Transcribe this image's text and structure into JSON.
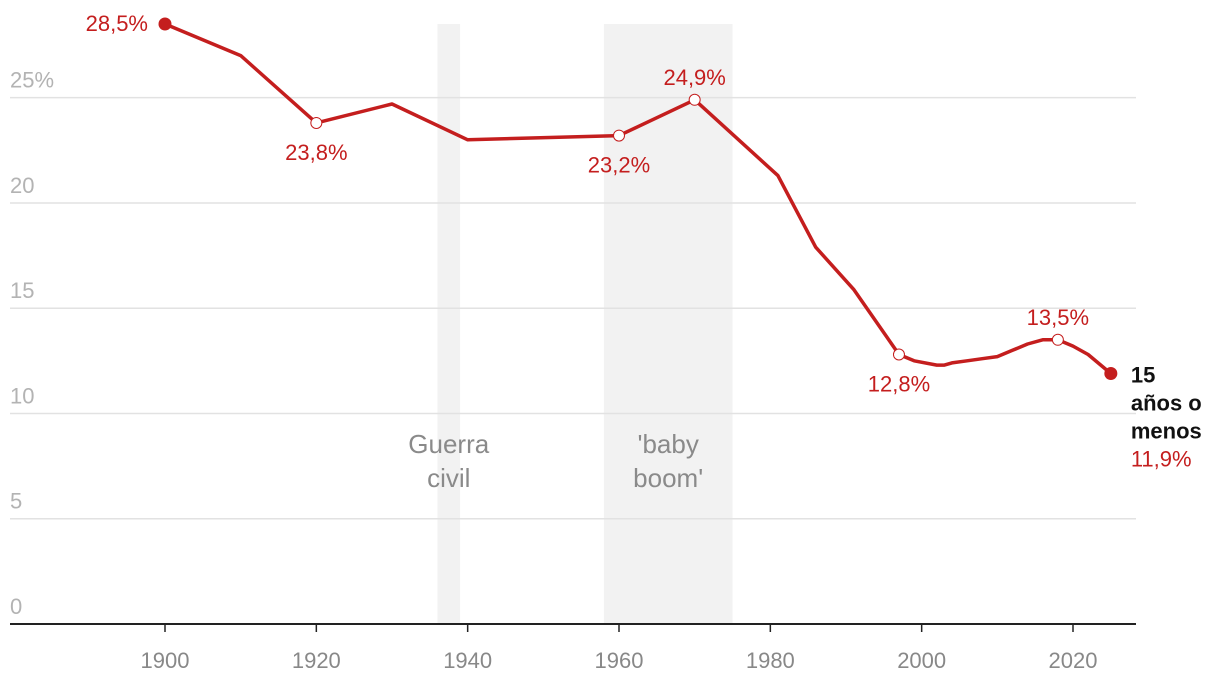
{
  "chart_data": {
    "type": "line",
    "title": "",
    "xlabel": "",
    "ylabel": "",
    "xlim": [
      1880,
      2027
    ],
    "ylim": [
      0,
      28.5
    ],
    "colors": {
      "line": "#c41e1e",
      "grid": "#e2e2e2",
      "band": "#f2f2f2",
      "axis": "#222222"
    },
    "y_ticks": [
      {
        "value": 0,
        "label": "0"
      },
      {
        "value": 5,
        "label": "5"
      },
      {
        "value": 10,
        "label": "10"
      },
      {
        "value": 15,
        "label": "15"
      },
      {
        "value": 20,
        "label": "20"
      },
      {
        "value": 25,
        "label": "25%"
      }
    ],
    "x_ticks": [
      {
        "value": 1900,
        "label": "1900"
      },
      {
        "value": 1920,
        "label": "1920"
      },
      {
        "value": 1940,
        "label": "1940"
      },
      {
        "value": 1960,
        "label": "1960"
      },
      {
        "value": 1980,
        "label": "1980"
      },
      {
        "value": 2000,
        "label": "2000"
      },
      {
        "value": 2020,
        "label": "2020"
      }
    ],
    "periods": [
      {
        "start": 1936,
        "end": 1939,
        "label_lines": [
          "Guerra",
          "civil"
        ]
      },
      {
        "start": 1958,
        "end": 1975,
        "label_lines": [
          "'baby",
          "boom'"
        ]
      }
    ],
    "series": [
      {
        "name_lines": [
          "15",
          "años o",
          "menos"
        ],
        "end_label": "11,9%",
        "points": [
          [
            1900,
            28.5
          ],
          [
            1910,
            27.0
          ],
          [
            1920,
            23.8
          ],
          [
            1930,
            24.7
          ],
          [
            1940,
            23.0
          ],
          [
            1960,
            23.2
          ],
          [
            1970,
            24.9
          ],
          [
            1981,
            21.3
          ],
          [
            1986,
            17.9
          ],
          [
            1991,
            15.9
          ],
          [
            1997,
            12.8
          ],
          [
            1999,
            12.5
          ],
          [
            2002,
            12.3
          ],
          [
            2003,
            12.3
          ],
          [
            2004,
            12.4
          ],
          [
            2006,
            12.5
          ],
          [
            2008,
            12.6
          ],
          [
            2010,
            12.7
          ],
          [
            2012,
            13.0
          ],
          [
            2014,
            13.3
          ],
          [
            2016,
            13.5
          ],
          [
            2018,
            13.5
          ],
          [
            2020,
            13.2
          ],
          [
            2022,
            12.8
          ],
          [
            2025,
            11.9
          ]
        ],
        "annotations": [
          {
            "x": 1900,
            "y": 28.5,
            "label": "28,5%",
            "marker": "filled",
            "position": "left"
          },
          {
            "x": 1920,
            "y": 23.8,
            "label": "23,8%",
            "marker": "open",
            "position": "below"
          },
          {
            "x": 1960,
            "y": 23.2,
            "label": "23,2%",
            "marker": "open",
            "position": "below"
          },
          {
            "x": 1970,
            "y": 24.9,
            "label": "24,9%",
            "marker": "open",
            "position": "above"
          },
          {
            "x": 1997,
            "y": 12.8,
            "label": "12,8%",
            "marker": "open",
            "position": "below"
          },
          {
            "x": 2018,
            "y": 13.5,
            "label": "13,5%",
            "marker": "open",
            "position": "above"
          },
          {
            "x": 2025,
            "y": 11.9,
            "label": "",
            "marker": "filled",
            "position": "right"
          }
        ]
      }
    ]
  }
}
